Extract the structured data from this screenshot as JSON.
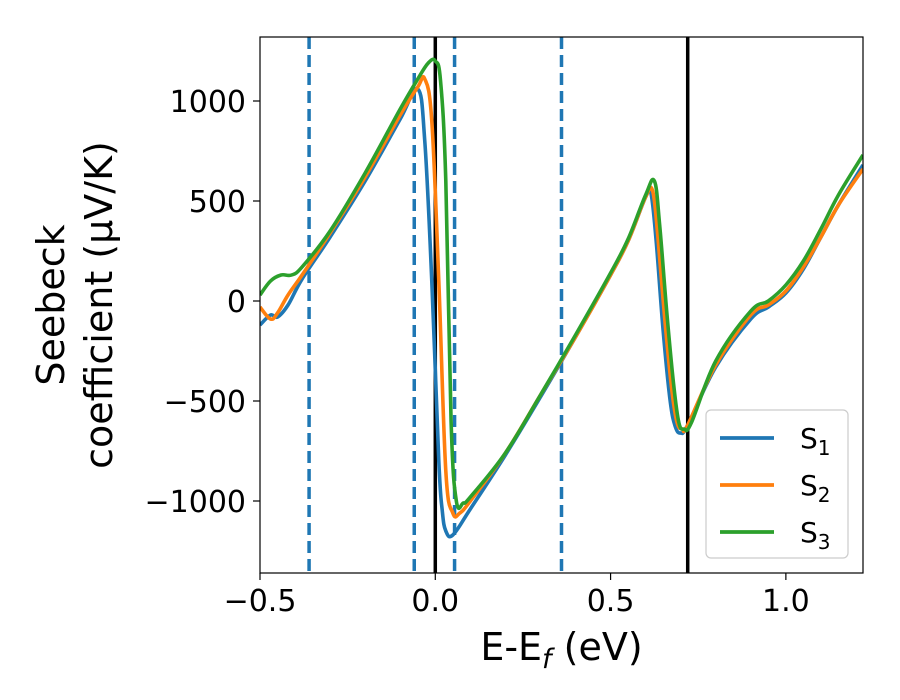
{
  "chart_data": {
    "type": "line",
    "xlabel": "E-E_f (eV)",
    "ylabel_line1": "Seebeck",
    "ylabel_line2": "coefficient  (μV/K)",
    "xlim": [
      -0.5,
      1.22
    ],
    "ylim": [
      -1360,
      1320
    ],
    "x_ticks": [
      -0.5,
      0.0,
      0.5,
      1.0
    ],
    "x_tick_labels": [
      "−0.5",
      "0.0",
      "0.5",
      "1.0"
    ],
    "y_ticks": [
      -1000,
      -500,
      0,
      500,
      1000
    ],
    "y_tick_labels": [
      "−1000",
      "−500",
      "0",
      "500",
      "1000"
    ],
    "grid": false,
    "legend_position": "bottom-right",
    "vlines_dashed": {
      "x": [
        -0.36,
        -0.06,
        0.055,
        0.36
      ],
      "color": "#1f77b4"
    },
    "vlines_solid": {
      "x": [
        0.0,
        0.72
      ],
      "color": "#000000"
    },
    "series": [
      {
        "name": "S",
        "subscript": "1",
        "color": "#1f77b4",
        "x": [
          -0.5,
          -0.47,
          -0.45,
          -0.42,
          -0.38,
          -0.3,
          -0.2,
          -0.1,
          -0.05,
          -0.03,
          -0.01,
          0.01,
          0.02,
          0.03,
          0.05,
          0.1,
          0.2,
          0.3,
          0.4,
          0.5,
          0.55,
          0.6,
          0.615,
          0.63,
          0.65,
          0.67,
          0.685,
          0.7,
          0.72,
          0.8,
          0.9,
          0.95,
          1.0,
          1.05,
          1.1,
          1.15,
          1.22
        ],
        "y": [
          -120,
          -70,
          -80,
          -20,
          110,
          320,
          600,
          910,
          1060,
          800,
          100,
          -800,
          -1050,
          -1150,
          -1170,
          -1040,
          -770,
          -480,
          -180,
          130,
          300,
          520,
          540,
          300,
          -150,
          -500,
          -630,
          -660,
          -620,
          -330,
          -90,
          -30,
          40,
          160,
          320,
          480,
          680
        ]
      },
      {
        "name": "S",
        "subscript": "2",
        "color": "#ff7f0e",
        "x": [
          -0.5,
          -0.47,
          -0.45,
          -0.42,
          -0.38,
          -0.3,
          -0.2,
          -0.1,
          -0.05,
          -0.03,
          -0.01,
          0.01,
          0.03,
          0.05,
          0.07,
          0.1,
          0.2,
          0.3,
          0.4,
          0.5,
          0.55,
          0.6,
          0.62,
          0.635,
          0.655,
          0.675,
          0.69,
          0.705,
          0.72,
          0.8,
          0.9,
          0.95,
          1.0,
          1.05,
          1.1,
          1.15,
          1.22
        ],
        "y": [
          -30,
          -90,
          -60,
          30,
          130,
          340,
          620,
          930,
          1070,
          1110,
          900,
          100,
          -850,
          -1060,
          -1060,
          -1000,
          -760,
          -470,
          -180,
          130,
          300,
          520,
          550,
          320,
          -100,
          -450,
          -610,
          -640,
          -620,
          -320,
          -70,
          -20,
          50,
          170,
          320,
          480,
          660
        ]
      },
      {
        "name": "S",
        "subscript": "3",
        "color": "#2ca02c",
        "x": [
          -0.5,
          -0.47,
          -0.44,
          -0.41,
          -0.38,
          -0.3,
          -0.2,
          -0.1,
          -0.05,
          -0.02,
          0.0,
          0.015,
          0.03,
          0.045,
          0.06,
          0.08,
          0.1,
          0.2,
          0.3,
          0.4,
          0.5,
          0.55,
          0.6,
          0.625,
          0.64,
          0.66,
          0.68,
          0.695,
          0.71,
          0.73,
          0.8,
          0.9,
          0.95,
          1.0,
          1.05,
          1.1,
          1.15,
          1.22
        ],
        "y": [
          30,
          100,
          130,
          130,
          170,
          350,
          640,
          960,
          1110,
          1190,
          1200,
          1100,
          600,
          -600,
          -1000,
          -1010,
          -980,
          -760,
          -470,
          -170,
          140,
          310,
          530,
          600,
          380,
          -50,
          -420,
          -610,
          -640,
          -610,
          -300,
          -50,
          0,
          80,
          200,
          360,
          530,
          730
        ]
      }
    ]
  }
}
